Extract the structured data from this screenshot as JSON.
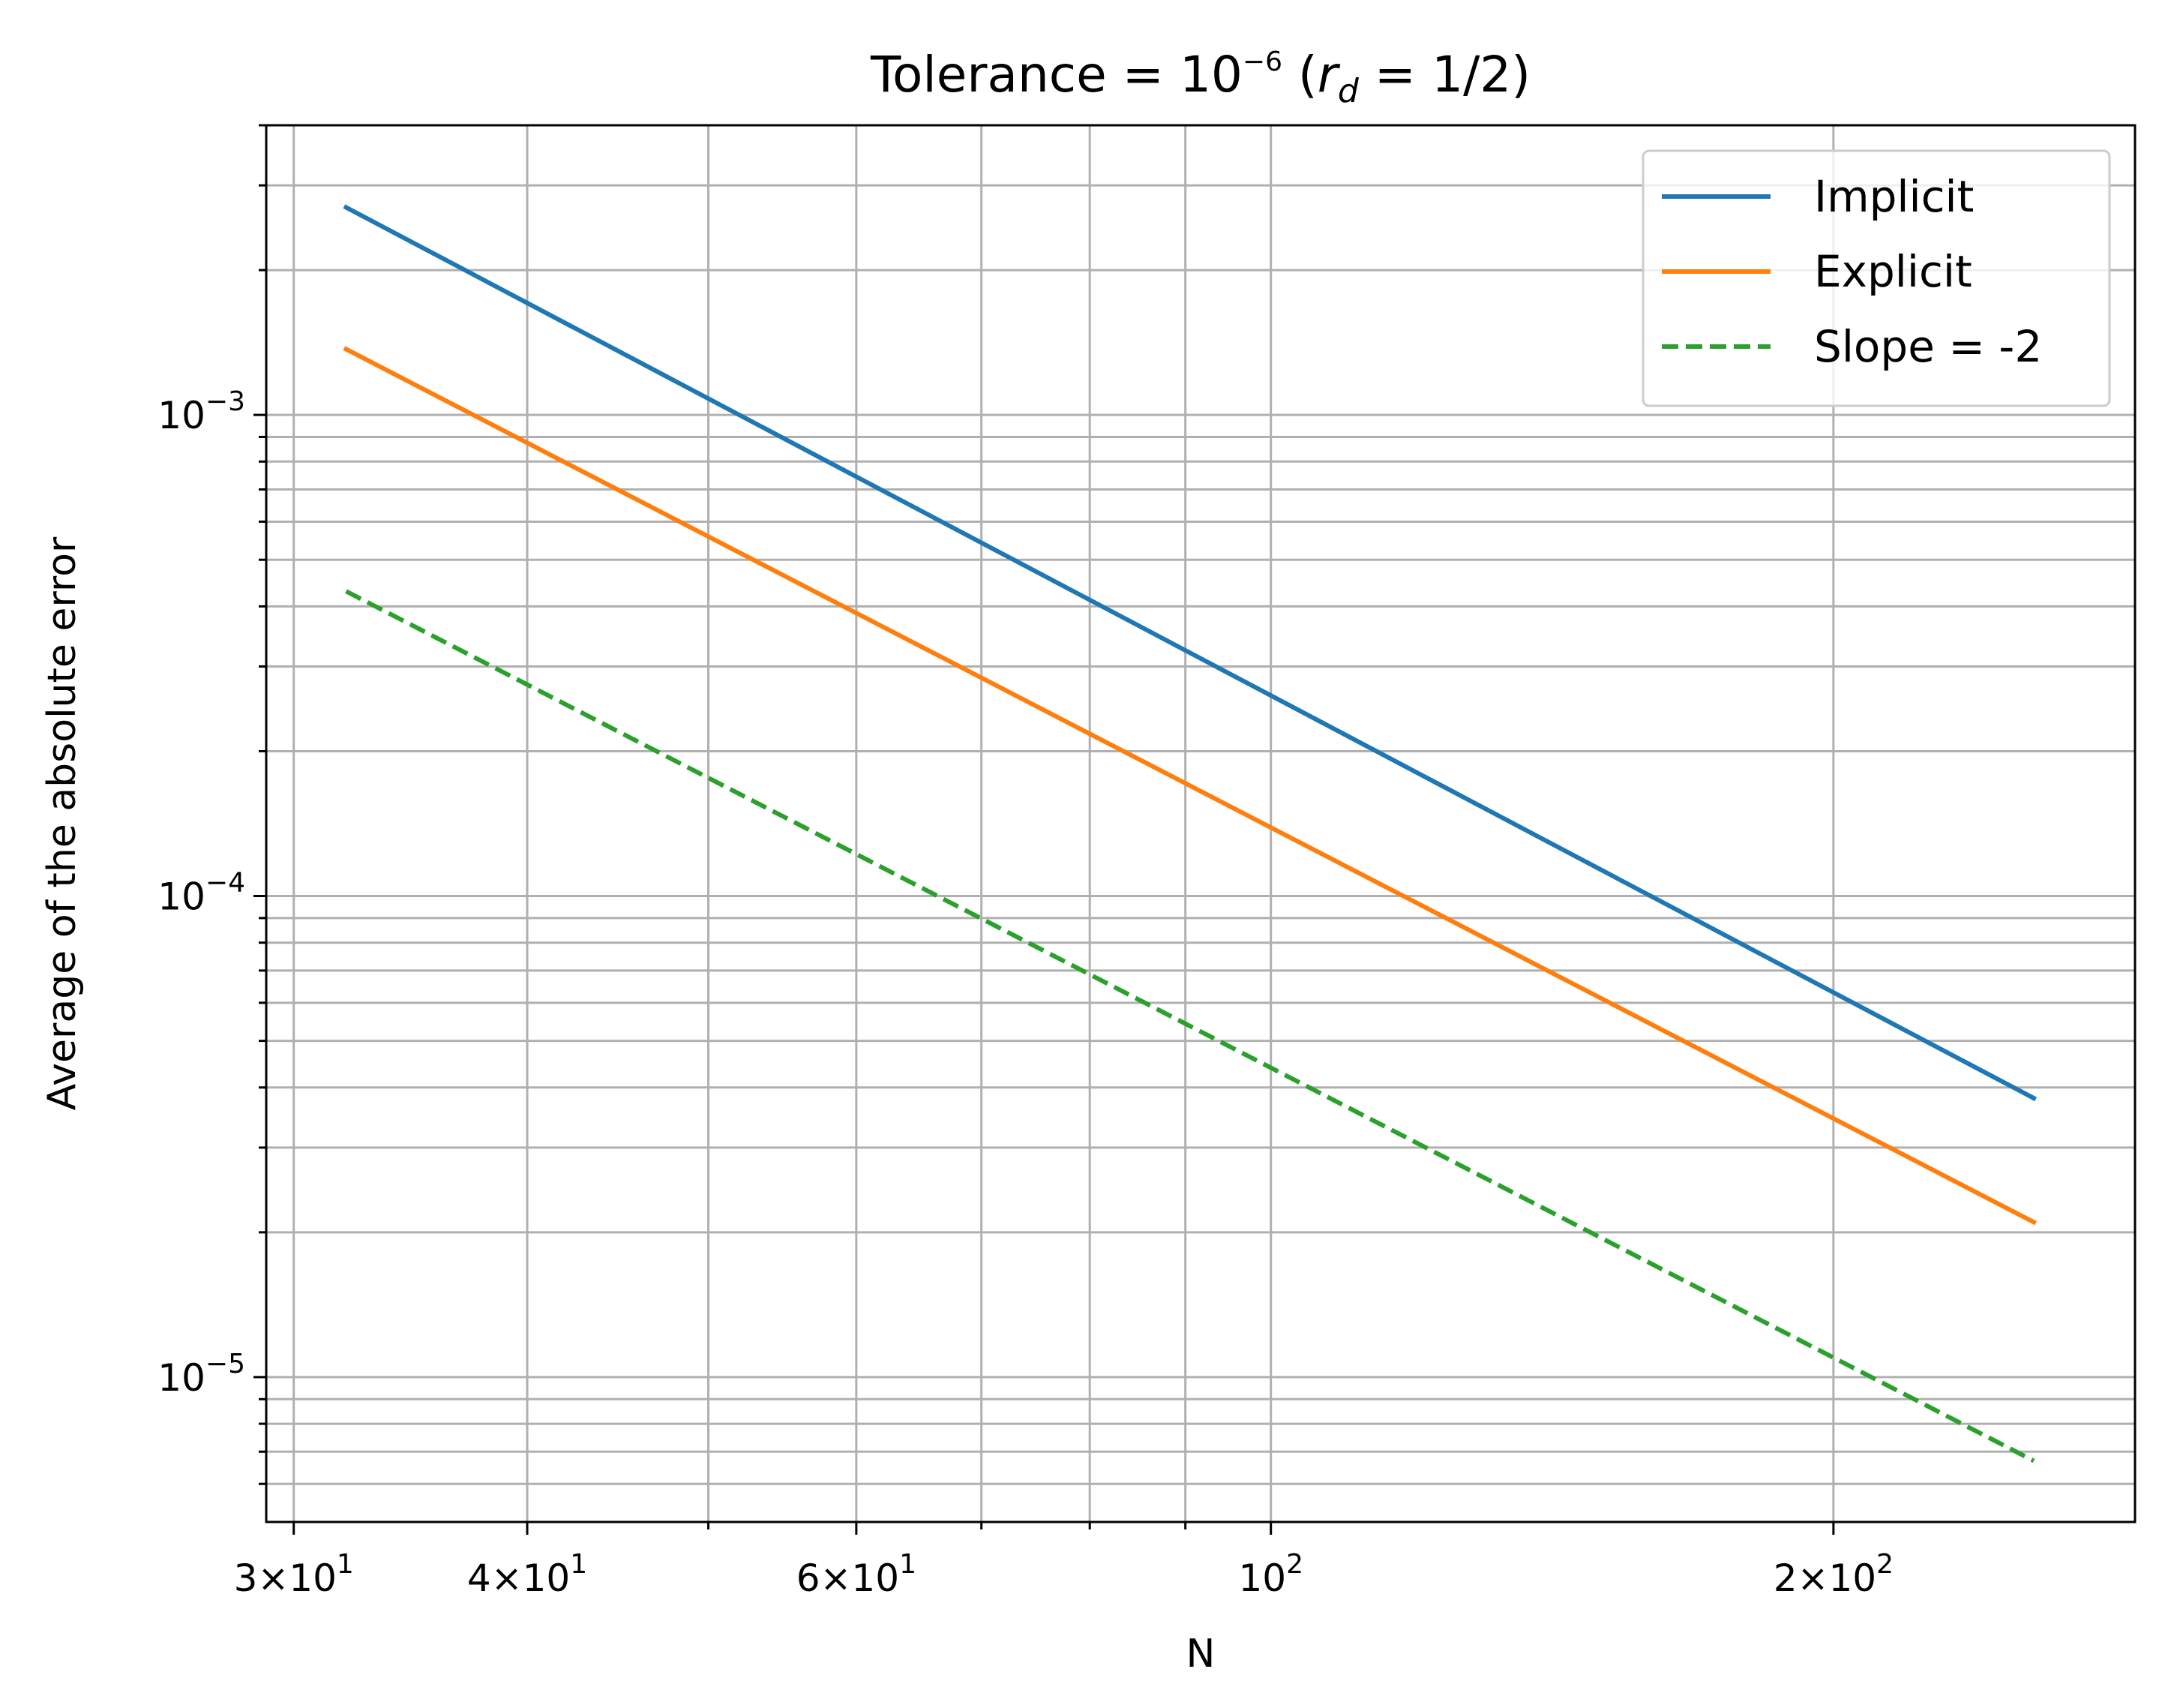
{
  "chart_data": {
    "type": "line",
    "title": {
      "prefix": "Tolerance = 10",
      "exponent": "−6",
      "middle": " (",
      "var": "r",
      "var_sub": "d",
      "suffix": " = 1/2)"
    },
    "xlabel": "N",
    "ylabel": "Average of the absolute error",
    "xscale": "log",
    "yscale": "log",
    "xlim": [
      29,
      290
    ],
    "ylim": [
      5e-06,
      0.004
    ],
    "grid": true,
    "grid_minor": true,
    "legend_position": "top-right",
    "x_ticks": [
      {
        "value": 30,
        "mantissa": "3×10",
        "exp": "1"
      },
      {
        "value": 40,
        "mantissa": "4×10",
        "exp": "1"
      },
      {
        "value": 60,
        "mantissa": "6×10",
        "exp": "1"
      },
      {
        "value": 100,
        "mantissa": "10",
        "exp": "2"
      },
      {
        "value": 200,
        "mantissa": "2×10",
        "exp": "2"
      }
    ],
    "y_ticks": [
      {
        "value": 1e-05,
        "mantissa": "10",
        "exp": "−5"
      },
      {
        "value": 0.0001,
        "mantissa": "10",
        "exp": "−4"
      },
      {
        "value": 0.001,
        "mantissa": "10",
        "exp": "−3"
      }
    ],
    "series": [
      {
        "name": "Implicit",
        "color": "#1f77b4",
        "style": "solid",
        "x": [
          32,
          256
        ],
        "y": [
          0.0027,
          3.8e-05
        ]
      },
      {
        "name": "Explicit",
        "color": "#ff7f0e",
        "style": "solid",
        "x": [
          32,
          256
        ],
        "y": [
          0.00137,
          2.1e-05
        ]
      },
      {
        "name": "Slope = -2",
        "color": "#2ca02c",
        "style": "dashed",
        "x": [
          32,
          256
        ],
        "y": [
          0.00043,
          6.7e-06
        ]
      }
    ]
  }
}
